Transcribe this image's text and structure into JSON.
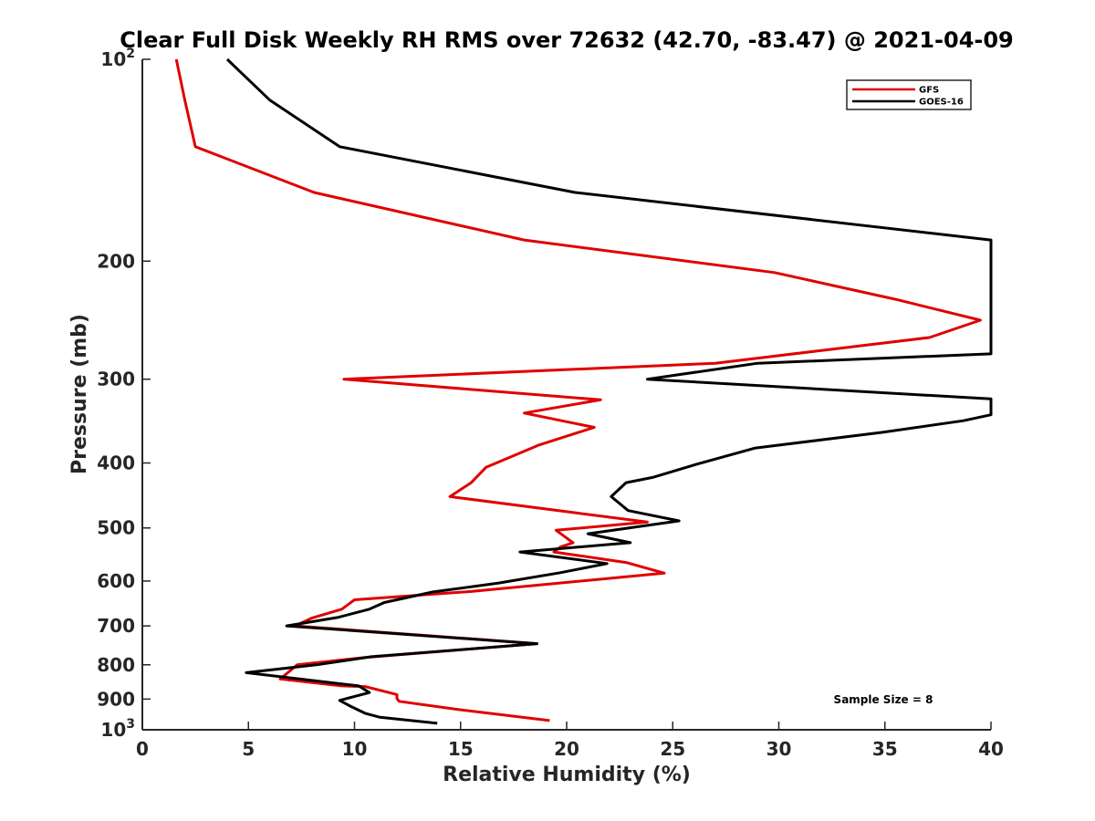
{
  "chart_data": {
    "type": "line",
    "title": "Clear Full Disk Weekly RH RMS over 72632 (42.70, -83.47) @ 2021-04-09",
    "xlabel": "Relative Humidity (%)",
    "ylabel": "Pressure (mb)",
    "xlim": [
      0,
      40
    ],
    "ylim": [
      100,
      1000
    ],
    "yscale": "log",
    "yreversed": true,
    "grid": false,
    "legend_position": "top-right",
    "xticks": [
      0,
      5,
      10,
      15,
      20,
      25,
      30,
      35,
      40
    ],
    "xtick_labels": [
      "0",
      "5",
      "10",
      "15",
      "20",
      "25",
      "30",
      "35",
      "40"
    ],
    "yticks": [
      {
        "value": 100,
        "base": "10",
        "exp": "2"
      },
      {
        "value": 200,
        "label": "200"
      },
      {
        "value": 300,
        "label": "300"
      },
      {
        "value": 400,
        "label": "400"
      },
      {
        "value": 500,
        "label": "500"
      },
      {
        "value": 600,
        "label": "600"
      },
      {
        "value": 700,
        "label": "700"
      },
      {
        "value": 800,
        "label": "800"
      },
      {
        "value": 900,
        "label": "900"
      },
      {
        "value": 1000,
        "base": "10",
        "exp": "3"
      }
    ],
    "annotation": "Sample Size = 8",
    "series": [
      {
        "name": "GFS",
        "color": "#e00000",
        "points": [
          [
            1.6,
            100
          ],
          [
            2.0,
            115
          ],
          [
            2.5,
            135
          ],
          [
            8.1,
            158
          ],
          [
            18.0,
            186
          ],
          [
            29.8,
            208
          ],
          [
            35.5,
            228
          ],
          [
            39.5,
            245
          ],
          [
            37.1,
            260
          ],
          [
            27.0,
            284
          ],
          [
            9.5,
            300
          ],
          [
            21.6,
            322
          ],
          [
            18.0,
            337
          ],
          [
            21.3,
            354
          ],
          [
            18.7,
            376
          ],
          [
            16.2,
            406
          ],
          [
            15.5,
            428
          ],
          [
            14.5,
            449
          ],
          [
            20.5,
            475
          ],
          [
            23.8,
            490
          ],
          [
            19.5,
            504
          ],
          [
            20.3,
            526
          ],
          [
            19.7,
            534
          ],
          [
            19.4,
            543
          ],
          [
            22.8,
            563
          ],
          [
            24.6,
            584
          ],
          [
            15.5,
            622
          ],
          [
            10.0,
            640
          ],
          [
            9.4,
            661
          ],
          [
            8.0,
            681
          ],
          [
            7.2,
            700
          ],
          [
            18.6,
            744
          ],
          [
            10.5,
            780
          ],
          [
            7.3,
            800
          ],
          [
            6.5,
            840
          ],
          [
            9.4,
            860
          ],
          [
            10.5,
            862
          ],
          [
            12.0,
            886
          ],
          [
            12.0,
            898
          ],
          [
            12.1,
            907
          ],
          [
            14.8,
            932
          ],
          [
            19.2,
            969
          ]
        ]
      },
      {
        "name": "GOES-16",
        "color": "#000000",
        "points": [
          [
            4.0,
            100
          ],
          [
            6.0,
            115
          ],
          [
            9.3,
            135
          ],
          [
            20.4,
            158
          ],
          [
            40.0,
            186
          ],
          [
            40.0,
            275
          ],
          [
            29.0,
            284
          ],
          [
            23.8,
            300
          ],
          [
            40.0,
            321
          ],
          [
            40.0,
            339
          ],
          [
            38.7,
            346
          ],
          [
            34.9,
            360
          ],
          [
            28.9,
            380
          ],
          [
            26.1,
            402
          ],
          [
            24.1,
            420
          ],
          [
            22.8,
            428
          ],
          [
            22.1,
            449
          ],
          [
            22.9,
            471
          ],
          [
            25.3,
            488
          ],
          [
            21.0,
            510
          ],
          [
            23.0,
            526
          ],
          [
            17.8,
            543
          ],
          [
            21.9,
            565
          ],
          [
            19.7,
            583
          ],
          [
            16.8,
            604
          ],
          [
            13.7,
            623
          ],
          [
            11.4,
            646
          ],
          [
            10.7,
            661
          ],
          [
            9.2,
            680
          ],
          [
            6.8,
            700
          ],
          [
            18.6,
            744
          ],
          [
            10.8,
            778
          ],
          [
            8.2,
            800
          ],
          [
            4.9,
            822
          ],
          [
            10.2,
            860
          ],
          [
            10.7,
            880
          ],
          [
            9.3,
            904
          ],
          [
            9.8,
            922
          ],
          [
            10.5,
            945
          ],
          [
            11.2,
            958
          ],
          [
            13.9,
            978
          ]
        ]
      }
    ]
  }
}
